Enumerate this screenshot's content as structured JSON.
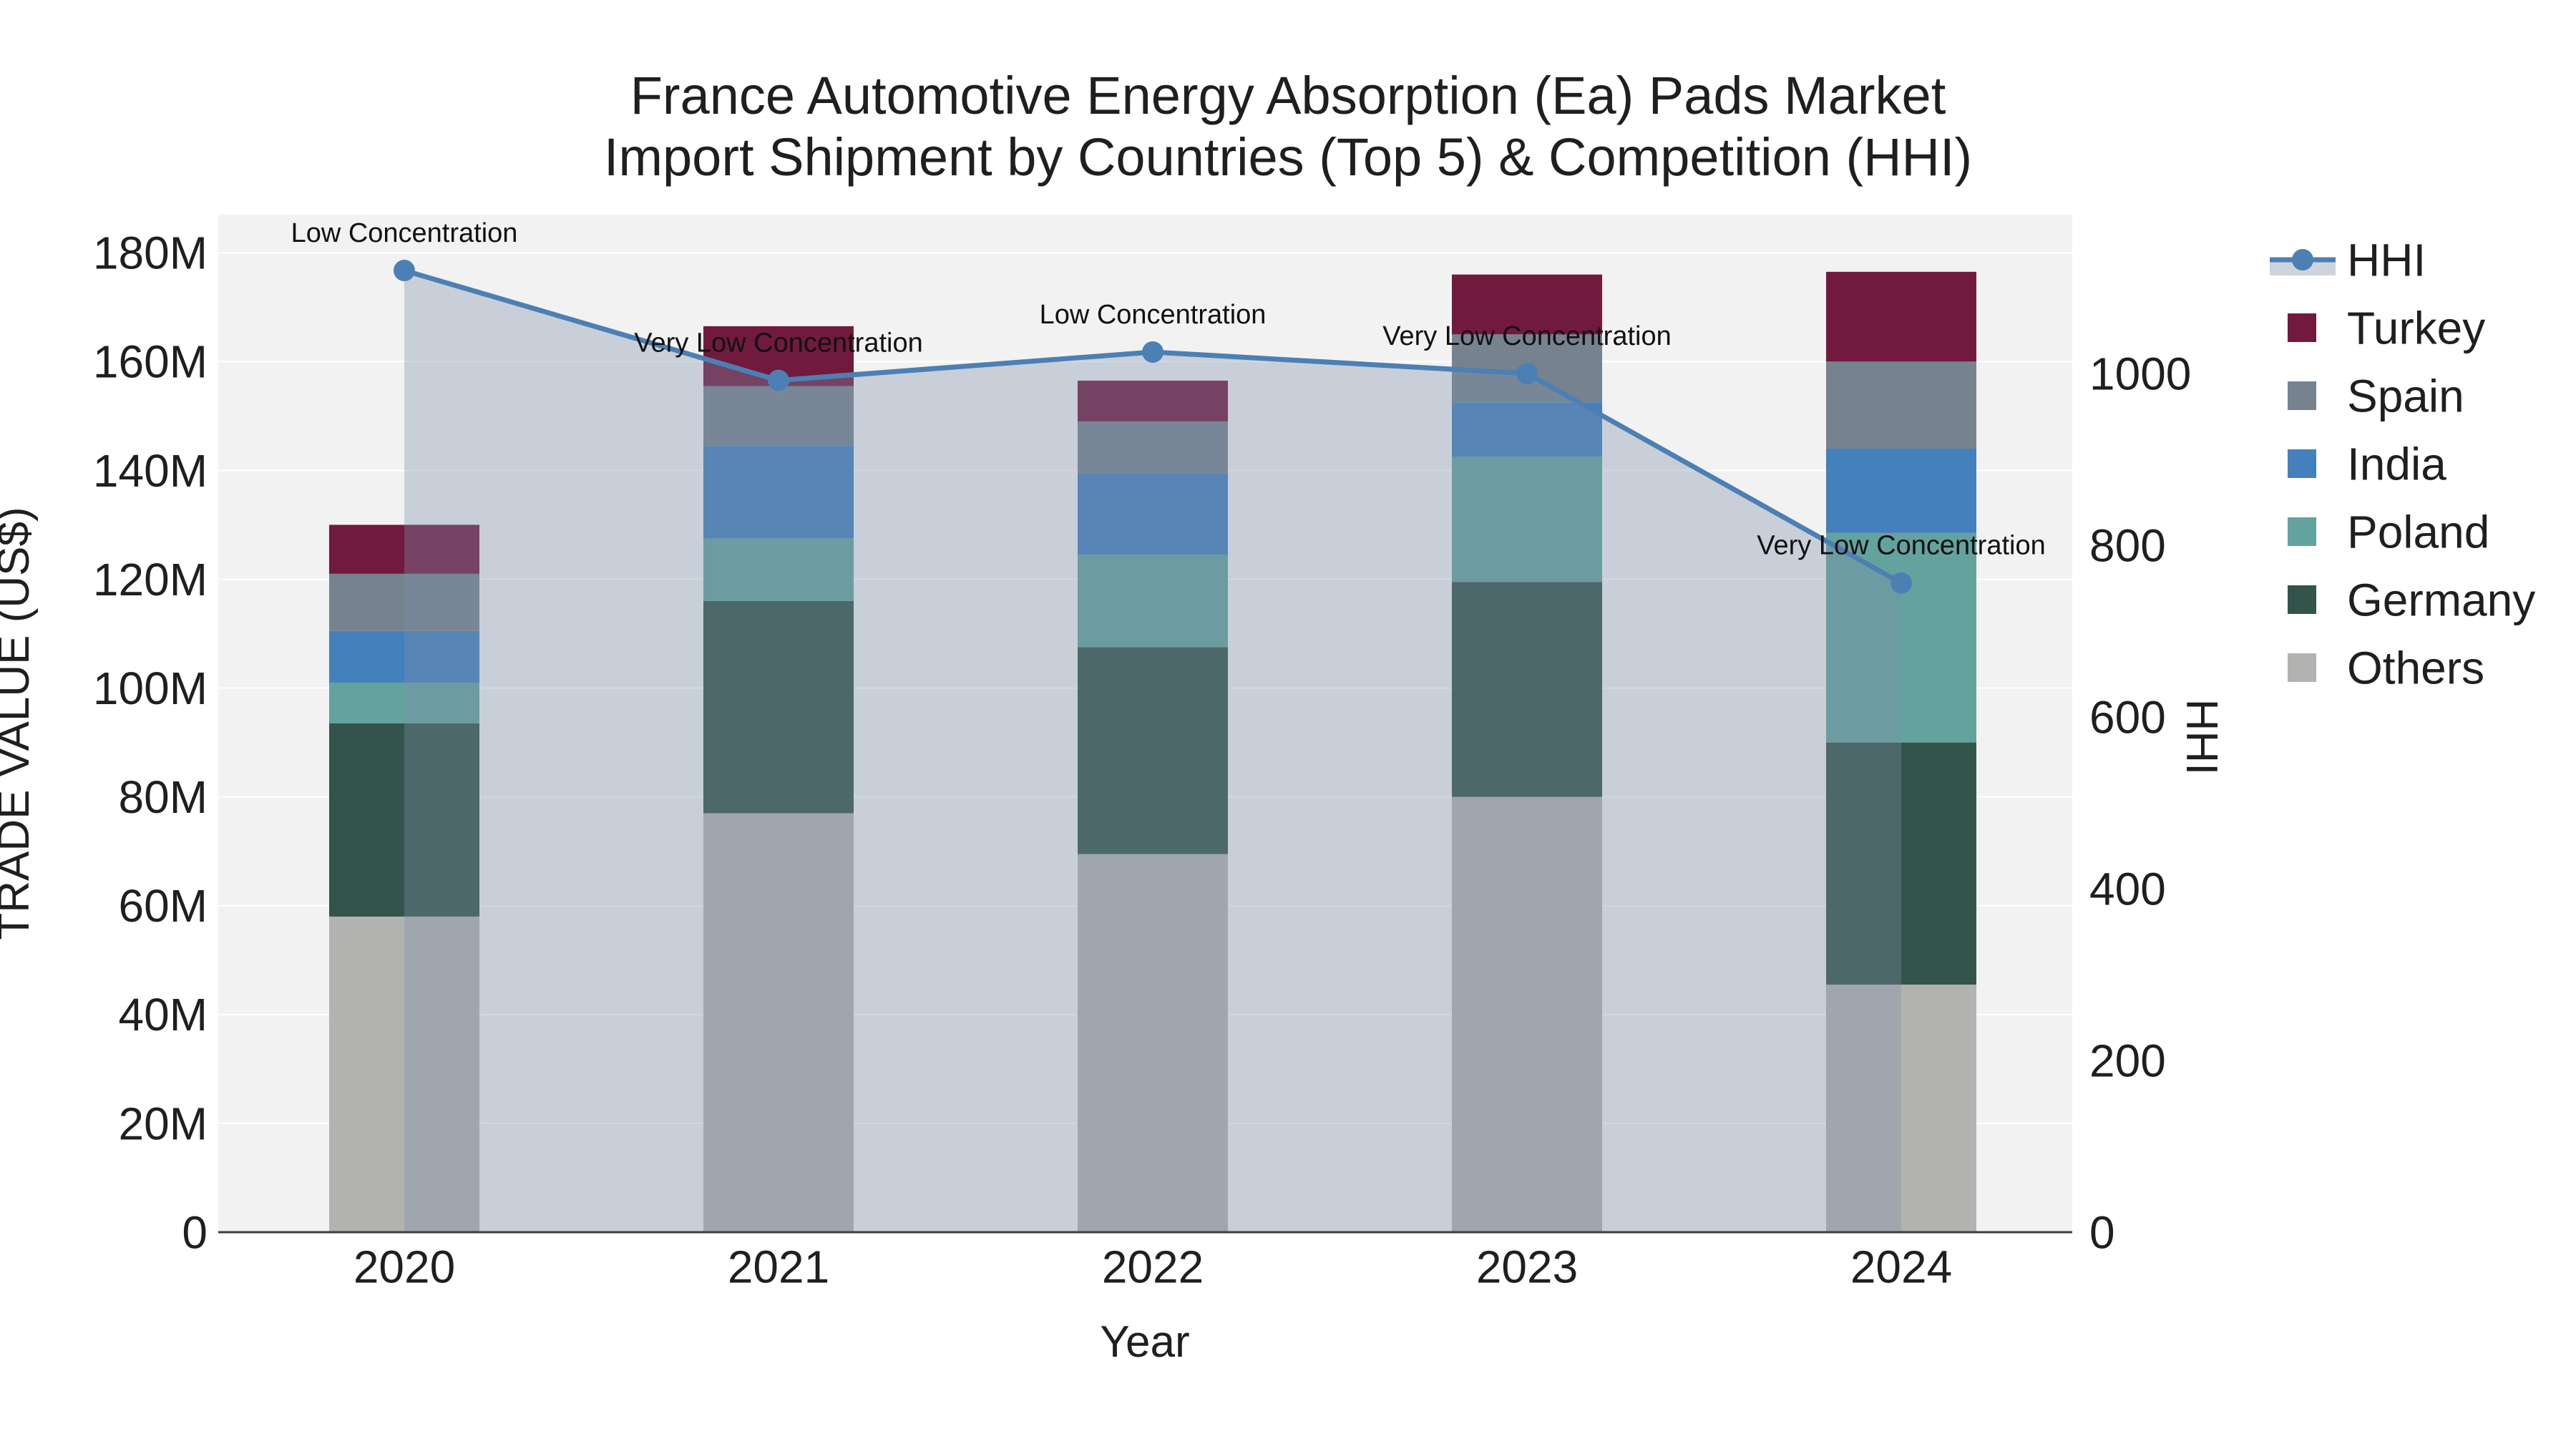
{
  "title": {
    "line1": "France Automotive Energy Absorption (Ea) Pads Market",
    "line2": "Import Shipment by Countries (Top 5) & Competition (HHI)"
  },
  "axes": {
    "x_title": "Year",
    "y_left_title": "TRADE VALUE (US$)",
    "y_right_title": "HHI",
    "x_tick_labels": [
      "2020",
      "2021",
      "2022",
      "2023",
      "2024"
    ],
    "y_left_tick_labels": [
      "0",
      "20M",
      "40M",
      "60M",
      "80M",
      "100M",
      "120M",
      "140M",
      "160M",
      "180M"
    ],
    "y_right_tick_labels": [
      "0",
      "200",
      "400",
      "600",
      "800",
      "1000"
    ]
  },
  "legend": {
    "items": [
      {
        "label": "HHI",
        "type": "line",
        "color_key": "hhi_line"
      },
      {
        "label": "Turkey",
        "type": "swatch",
        "color_key": "turkey"
      },
      {
        "label": "Spain",
        "type": "swatch",
        "color_key": "spain"
      },
      {
        "label": "India",
        "type": "swatch",
        "color_key": "india"
      },
      {
        "label": "Poland",
        "type": "swatch",
        "color_key": "poland"
      },
      {
        "label": "Germany",
        "type": "swatch",
        "color_key": "germany"
      },
      {
        "label": "Others",
        "type": "swatch",
        "color_key": "others"
      }
    ]
  },
  "chart_data": {
    "type": "bar",
    "subtype": "stacked-bars-with-secondary-axis-line",
    "title": "France Automotive Energy Absorption (Ea) Pads Market Import Shipment by Countries (Top 5) & Competition (HHI)",
    "categories": [
      "2020",
      "2021",
      "2022",
      "2023",
      "2024"
    ],
    "unit": "US$ millions (left axis), HHI index (right axis)",
    "series": [
      {
        "name": "Turkey",
        "values": [
          9,
          11,
          7.5,
          11,
          16.5
        ]
      },
      {
        "name": "Spain",
        "values": [
          10.5,
          11,
          9.5,
          12.5,
          16
        ]
      },
      {
        "name": "India",
        "values": [
          9.5,
          17,
          15,
          10,
          15.5
        ]
      },
      {
        "name": "Poland",
        "values": [
          7.5,
          11.5,
          17,
          23,
          38.5
        ]
      },
      {
        "name": "Germany",
        "values": [
          35.5,
          39,
          38,
          39.5,
          44.5
        ]
      },
      {
        "name": "Others",
        "values": [
          58,
          77,
          69.5,
          80,
          45.5
        ]
      }
    ],
    "stack_totals": [
      130,
      166.5,
      156.5,
      176,
      176.5
    ],
    "line_series": {
      "name": "HHI",
      "axis": "right",
      "values": [
        1120,
        992,
        1025,
        1000,
        756
      ],
      "area_fill": true
    },
    "annotations": [
      "Low Concentration",
      "Very Low Concentration",
      "Low Concentration",
      "Very Low Concentration",
      "Very Low Concentration"
    ],
    "xlabel": "Year",
    "ylabel_left": "TRADE VALUE (US$)",
    "ylabel_right": "HHI",
    "ylim_left": [
      0,
      187
    ],
    "ylim_right": [
      0,
      1185
    ],
    "grid": true,
    "legend_position": "right"
  },
  "colors": {
    "turkey": "#72193E",
    "spain": "#76838F",
    "india": "#4380BC",
    "poland": "#63A39D",
    "germany": "#32544B",
    "others": "#B2B2B0",
    "hhi_line": "#4C80B4",
    "hhi_fill": "rgba(125,142,170,0.35)",
    "legend_hhi_band": "#CFD4DC",
    "plot_bg": "#F2F2F2",
    "grid_line": "#FFFFFF",
    "axis_line": "#3E3E3E",
    "text": "#1F1F1F",
    "annotation_text": "#111111"
  }
}
